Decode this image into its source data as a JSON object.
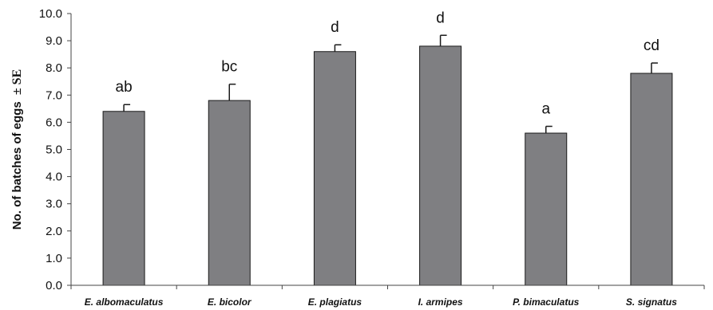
{
  "chart_data": {
    "type": "bar",
    "title": "",
    "xlabel": "",
    "ylabel": "No. of batches of eggs",
    "ylabel_suffix": "± SE",
    "ylim": [
      0,
      10
    ],
    "ytick_step": 1,
    "yticks": [
      "0.0",
      "1.0",
      "2.0",
      "3.0",
      "4.0",
      "5.0",
      "6.0",
      "7.0",
      "8.0",
      "9.0",
      "10.0"
    ],
    "categories": [
      "E. albomaculatus",
      "E. bicolor",
      "E. plagiatus",
      "I. armipes",
      "P. bimaculatus",
      "S. signatus"
    ],
    "values": [
      6.4,
      6.8,
      8.6,
      8.8,
      5.6,
      7.8
    ],
    "errors": [
      0.25,
      0.6,
      0.25,
      0.4,
      0.25,
      0.38
    ],
    "annotations": [
      "ab",
      "bc",
      "d",
      "d",
      "a",
      "cd"
    ],
    "grid": false,
    "legend": "none",
    "bar_color": "#7f7f82"
  }
}
